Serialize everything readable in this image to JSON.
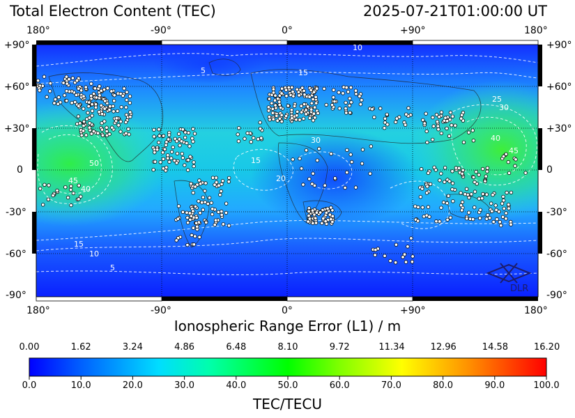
{
  "header": {
    "title": "Total Electron Content (TEC)",
    "timestamp": "2025-07-21T01:00:00 UT"
  },
  "map": {
    "lon_labels": [
      "180°",
      "-90°",
      "0°",
      "+90°",
      "180°"
    ],
    "lat_labels": [
      "+90°",
      "+60°",
      "+30°",
      "0",
      "-30°",
      "-60°",
      "-90°"
    ],
    "contour_labels": [
      "5",
      "10",
      "15",
      "20",
      "25",
      "30",
      "40",
      "45",
      "50"
    ],
    "logo_text": "DLR",
    "projection": "equirectangular",
    "grid": true
  },
  "range_axis": {
    "label": "Ionospheric Range Error (L1) / m",
    "ticks": [
      "0.00",
      "1.62",
      "3.24",
      "4.86",
      "6.48",
      "8.10",
      "9.72",
      "11.34",
      "12.96",
      "14.58",
      "16.20"
    ]
  },
  "colorbar": {
    "label": "TEC/TECU",
    "ticks": [
      "0.0",
      "10.0",
      "20.0",
      "30.0",
      "40.0",
      "50.0",
      "60.0",
      "70.0",
      "80.0",
      "90.0",
      "100.0"
    ],
    "range": [
      0,
      100
    ],
    "colors": [
      "#0000ff",
      "#0080ff",
      "#00ffff",
      "#00ff80",
      "#00ff00",
      "#80ff00",
      "#ffff00",
      "#ff8000",
      "#ff0000"
    ]
  }
}
